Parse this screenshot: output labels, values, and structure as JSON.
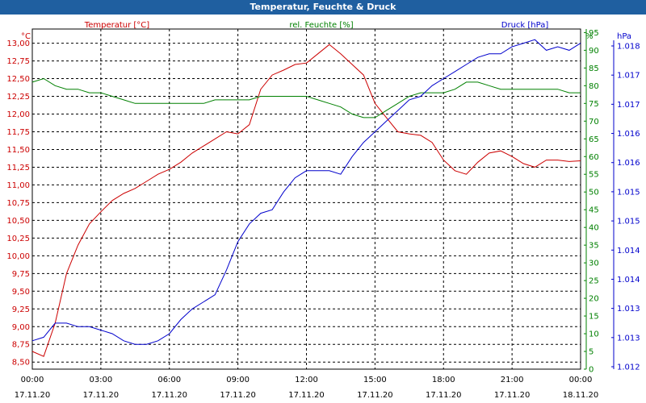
{
  "title": "Temperatur, Feuchte & Druck",
  "legend": {
    "temperature": "Temperatur [°C]",
    "humidity": "rel. Feuchte [%]",
    "pressure": "Druck [hPa]"
  },
  "units": {
    "left": "°C",
    "right_inner": "%",
    "right_outer": "hPa"
  },
  "colors": {
    "temperature": "#cc0000",
    "humidity": "#008000",
    "pressure": "#0000cc",
    "titlebar": "#1f5fa0",
    "grid": "#000000"
  },
  "chart_data": {
    "type": "line",
    "xlabel": "",
    "x": [
      "00:00",
      "00:30",
      "01:00",
      "01:30",
      "02:00",
      "02:30",
      "03:00",
      "03:30",
      "04:00",
      "04:30",
      "05:00",
      "05:30",
      "06:00",
      "06:30",
      "07:00",
      "07:30",
      "08:00",
      "08:30",
      "09:00",
      "09:30",
      "10:00",
      "10:30",
      "11:00",
      "11:30",
      "12:00",
      "12:30",
      "13:00",
      "13:30",
      "14:00",
      "14:30",
      "15:00",
      "15:30",
      "16:00",
      "16:30",
      "17:00",
      "17:30",
      "18:00",
      "18:30",
      "19:00",
      "19:30",
      "20:00",
      "20:30",
      "21:00",
      "21:30",
      "22:00",
      "22:30",
      "23:00",
      "23:30",
      "24:00"
    ],
    "x_ticks": [
      {
        "time": "00:00",
        "date": "17.11.20"
      },
      {
        "time": "03:00",
        "date": "17.11.20"
      },
      {
        "time": "06:00",
        "date": "17.11.20"
      },
      {
        "time": "09:00",
        "date": "17.11.20"
      },
      {
        "time": "12:00",
        "date": "17.11.20"
      },
      {
        "time": "15:00",
        "date": "17.11.20"
      },
      {
        "time": "18:00",
        "date": "17.11.20"
      },
      {
        "time": "21:00",
        "date": "17.11.20"
      },
      {
        "time": "00:00",
        "date": "18.11.20"
      }
    ],
    "y_left": {
      "label": "°C",
      "range": [
        8.4,
        13.2
      ],
      "ticks": [
        "8,50",
        "8,75",
        "9,00",
        "9,25",
        "9,50",
        "9,75",
        "10,00",
        "10,25",
        "10,50",
        "10,75",
        "11,00",
        "11,25",
        "11,50",
        "11,75",
        "12,00",
        "12,25",
        "12,50",
        "12,75",
        "13,00"
      ]
    },
    "y_right_inner": {
      "label": "%",
      "range": [
        0,
        96
      ],
      "ticks": [
        "0",
        "5",
        "10",
        "15",
        "20",
        "25",
        "30",
        "35",
        "40",
        "45",
        "50",
        "55",
        "60",
        "65",
        "70",
        "75",
        "80",
        "85",
        "90",
        "95"
      ]
    },
    "y_right_outer": {
      "label": "hPa",
      "ticks": [
        "1.012",
        "1.013",
        "1.013",
        "1.014",
        "1.014",
        "1.015",
        "1.015",
        "1.016",
        "1.016",
        "1.017",
        "1.017",
        "1.018"
      ]
    },
    "grid": true,
    "series": [
      {
        "name": "Temperatur [°C]",
        "axis": "left",
        "values": [
          8.65,
          8.58,
          9.05,
          9.75,
          10.15,
          10.45,
          10.62,
          10.78,
          10.88,
          10.95,
          11.05,
          11.15,
          11.22,
          11.32,
          11.45,
          11.55,
          11.65,
          11.75,
          11.72,
          11.85,
          12.35,
          12.55,
          12.62,
          12.7,
          12.72,
          12.85,
          12.98,
          12.85,
          12.7,
          12.55,
          12.15,
          11.95,
          11.75,
          11.72,
          11.7,
          11.6,
          11.35,
          11.2,
          11.15,
          11.32,
          11.45,
          11.48,
          11.4,
          11.3,
          11.25,
          11.35,
          11.35,
          11.33,
          11.34
        ]
      },
      {
        "name": "rel. Feuchte [%]",
        "axis": "right_inner",
        "values": [
          81,
          82,
          80,
          79,
          79,
          78,
          78,
          77,
          76,
          75,
          75,
          75,
          75,
          75,
          75,
          75,
          76,
          76,
          76,
          76,
          77,
          77,
          77,
          77,
          77,
          76,
          75,
          74,
          72,
          71,
          71,
          73,
          75,
          77,
          78,
          78,
          78,
          79,
          81,
          81,
          80,
          79,
          79,
          79,
          79,
          79,
          79,
          78,
          78
        ]
      },
      {
        "name": "Druck [hPa]",
        "axis": "right_inner",
        "values": [
          8,
          9,
          13,
          13,
          12,
          12,
          11,
          10,
          8,
          7,
          7,
          8,
          10,
          14,
          17,
          19,
          21,
          28,
          36,
          41,
          44,
          45,
          50,
          54,
          56,
          56,
          56,
          55,
          60,
          64,
          67,
          70,
          73,
          76,
          77,
          80,
          82,
          84,
          86,
          88,
          89,
          89,
          91,
          92,
          93,
          90,
          91,
          90,
          92
        ]
      }
    ]
  }
}
